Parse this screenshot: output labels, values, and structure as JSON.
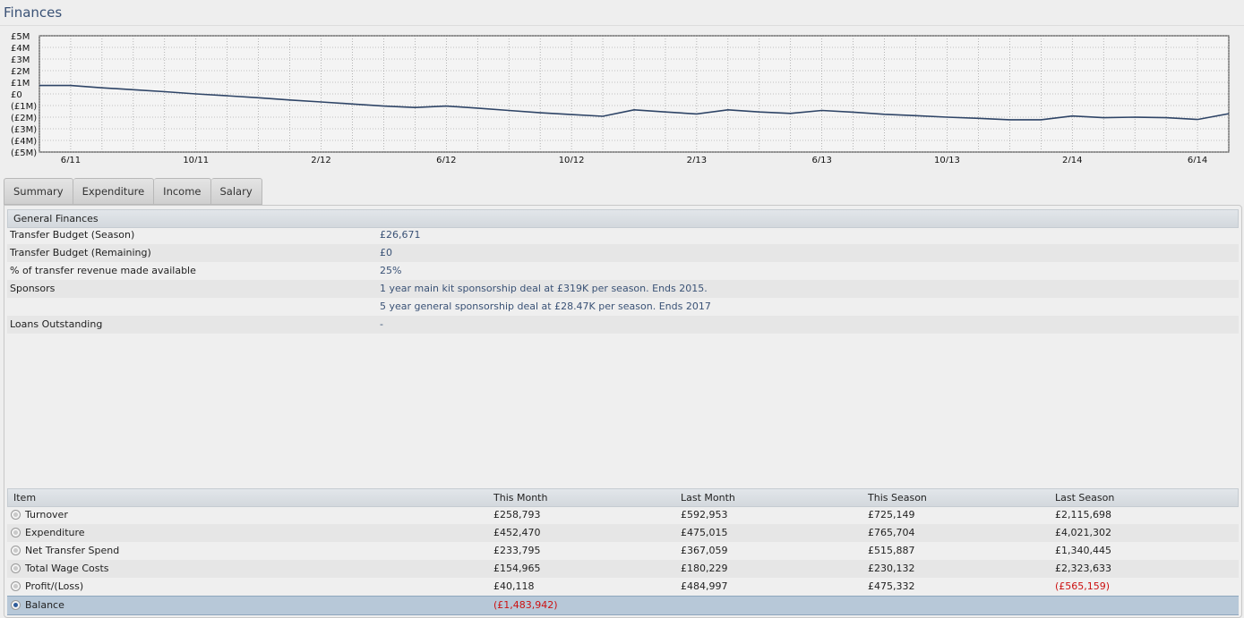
{
  "page": {
    "title": "Finances"
  },
  "chart_data": {
    "type": "line",
    "title": "",
    "ylim": [
      -5,
      5
    ],
    "y_ticks": [
      "£5M",
      "£4M",
      "£3M",
      "£2M",
      "£1M",
      "£0",
      "(£1M)",
      "(£2M)",
      "(£3M)",
      "(£4M)",
      "(£5M)"
    ],
    "y_tick_values": [
      5,
      4,
      3,
      2,
      1,
      0,
      -1,
      -2,
      -3,
      -4,
      -5
    ],
    "x_tick_labels": [
      "6/11",
      "10/11",
      "2/12",
      "6/12",
      "10/12",
      "2/13",
      "6/13",
      "10/13",
      "2/14",
      "6/14"
    ],
    "x_tick_index": [
      1,
      5,
      9,
      13,
      17,
      21,
      25,
      29,
      33,
      37
    ],
    "grid": true,
    "series": [
      {
        "values": [
          0.72,
          0.72,
          0.52,
          0.36,
          0.19,
          0.0,
          -0.16,
          -0.33,
          -0.52,
          -0.69,
          -0.87,
          -1.05,
          -1.17,
          -1.05,
          -1.22,
          -1.42,
          -1.62,
          -1.78,
          -1.92,
          -1.37,
          -1.55,
          -1.72,
          -1.37,
          -1.55,
          -1.68,
          -1.42,
          -1.57,
          -1.75,
          -1.87,
          -2.0,
          -2.1,
          -2.22,
          -2.22,
          -1.9,
          -2.05,
          -2.0,
          -2.05,
          -2.2,
          -1.7
        ]
      }
    ]
  },
  "tabs": [
    {
      "label": "Summary",
      "active": true
    },
    {
      "label": "Expenditure",
      "active": false
    },
    {
      "label": "Income",
      "active": false
    },
    {
      "label": "Salary",
      "active": false
    }
  ],
  "general": {
    "heading": "General Finances",
    "rows": [
      {
        "label": "Transfer Budget (Season)",
        "value": "£26,671"
      },
      {
        "label": "Transfer Budget (Remaining)",
        "value": "£0"
      },
      {
        "label": "% of transfer revenue made available",
        "value": "25%"
      },
      {
        "label": "Sponsors",
        "value": "1 year main kit sponsorship deal at £319K per season. Ends 2015."
      },
      {
        "label": "",
        "value": "5 year general sponsorship deal at £28.47K per season. Ends 2017"
      },
      {
        "label": "Loans Outstanding",
        "value": "-"
      }
    ]
  },
  "items": {
    "headers": [
      "Item",
      "This Month",
      "Last Month",
      "This Season",
      "Last Season"
    ],
    "rows": [
      {
        "name": "Turnover",
        "this_month": "£258,793",
        "last_month": "£592,953",
        "this_season": "£725,149",
        "last_season": "£2,115,698"
      },
      {
        "name": "Expenditure",
        "this_month": "£452,470",
        "last_month": "£475,015",
        "this_season": "£765,704",
        "last_season": "£4,021,302"
      },
      {
        "name": "Net Transfer Spend",
        "this_month": "£233,795",
        "last_month": "£367,059",
        "this_season": "£515,887",
        "last_season": "£1,340,445"
      },
      {
        "name": "Total Wage Costs",
        "this_month": "£154,965",
        "last_month": "£180,229",
        "this_season": "£230,132",
        "last_season": "£2,323,633"
      },
      {
        "name": "Profit/(Loss)",
        "this_month": "£40,118",
        "last_month": "£484,997",
        "this_season": "£475,332",
        "last_season": "(£565,159)"
      },
      {
        "name": "Balance",
        "this_month": "(£1,483,942)",
        "last_month": "",
        "this_season": "",
        "last_season": ""
      }
    ],
    "selected_row": 5,
    "negative_color": "#cc1111"
  }
}
